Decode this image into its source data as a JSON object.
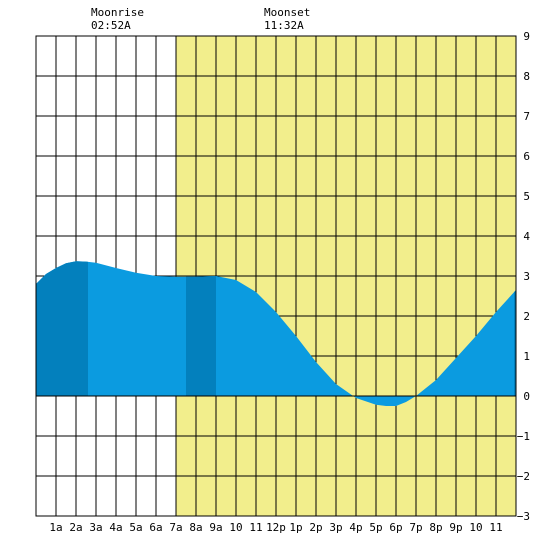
{
  "header": {
    "moonrise": {
      "label": "Moonrise",
      "time": "02:52A"
    },
    "moonset": {
      "label": "Moonset",
      "time": "11:32A"
    }
  },
  "colors": {
    "daylight": "#f2ee8c",
    "water": "#0b9be0",
    "water_dark": "#0380bd",
    "grid": "#000000",
    "background": "#ffffff"
  },
  "chart_data": {
    "type": "area",
    "x_tick_labels": [
      "1a",
      "2a",
      "3a",
      "4a",
      "5a",
      "6a",
      "7a",
      "8a",
      "9a",
      "10",
      "11",
      "12p",
      "1p",
      "2p",
      "3p",
      "4p",
      "5p",
      "6p",
      "7p",
      "8p",
      "9p",
      "10",
      "11"
    ],
    "y_tick_labels": [
      "9",
      "8",
      "7",
      "6",
      "5",
      "4",
      "3",
      "2",
      "1",
      "0",
      "−1",
      "−2",
      "−3"
    ],
    "xlim": [
      0,
      24
    ],
    "ylim": [
      -3,
      9
    ],
    "daylight_hours": [
      7.0,
      24.0
    ],
    "dark_bands": [
      [
        0.0,
        2.6
      ],
      [
        7.5,
        9.0
      ],
      [
        23.9,
        24.0
      ]
    ],
    "tide_curve": {
      "x": [
        0.0,
        0.5,
        1.0,
        1.5,
        2.0,
        2.5,
        3.0,
        4.0,
        5.0,
        6.0,
        7.0,
        8.0,
        9.0,
        10.0,
        11.0,
        12.0,
        13.0,
        14.0,
        15.0,
        16.0,
        17.0,
        17.5,
        18.0,
        18.5,
        19.0,
        20.0,
        21.0,
        22.0,
        23.0,
        24.0
      ],
      "y": [
        2.8,
        3.05,
        3.2,
        3.32,
        3.37,
        3.36,
        3.33,
        3.2,
        3.08,
        3.0,
        2.98,
        2.98,
        3.0,
        2.9,
        2.6,
        2.1,
        1.5,
        0.85,
        0.3,
        -0.05,
        -0.22,
        -0.25,
        -0.25,
        -0.15,
        0.0,
        0.4,
        0.95,
        1.5,
        2.1,
        2.65
      ]
    }
  }
}
